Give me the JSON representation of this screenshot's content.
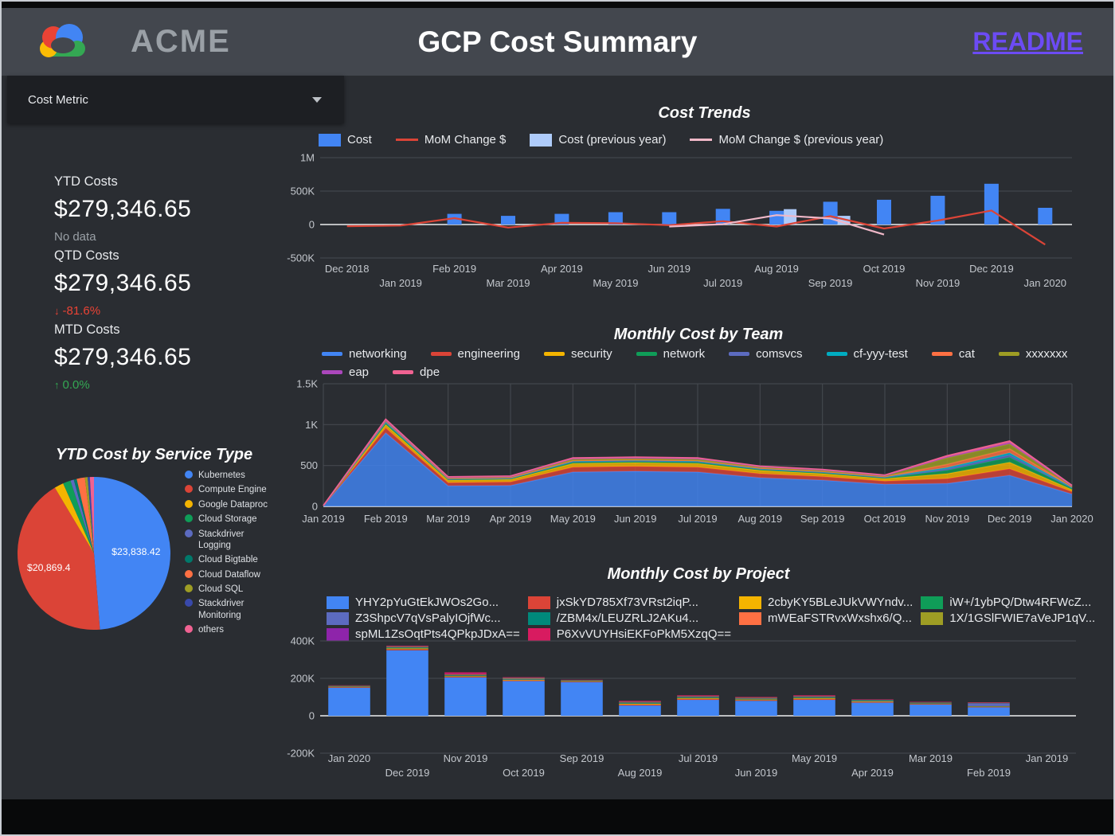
{
  "header": {
    "brand": "ACME",
    "title": "GCP Cost Summary",
    "readme": "README",
    "readme_color": "#6C4BF4"
  },
  "controls": {
    "cost_metric_label": "Cost Metric"
  },
  "kpis": [
    {
      "label": "YTD Costs",
      "value": "$279,346.65",
      "delta": "No data",
      "delta_icon": ""
    },
    {
      "label": "QTD Costs",
      "value": "$279,346.65",
      "delta": "-81.6%",
      "delta_icon": "↓"
    },
    {
      "label": "MTD Costs",
      "value": "$279,346.65",
      "delta": "0.0%",
      "delta_icon": "↑"
    }
  ],
  "chart_data": [
    {
      "id": "cost_trends",
      "type": "bar",
      "title": "Cost Trends",
      "categories": [
        "Dec 2018",
        "Jan 2019",
        "Feb 2019",
        "Mar 2019",
        "Apr 2019",
        "May 2019",
        "Jun 2019",
        "Jul 2019",
        "Aug 2019",
        "Sep 2019",
        "Oct 2019",
        "Nov 2019",
        "Dec 2019",
        "Jan 2020"
      ],
      "ylim": [
        -500000,
        1000000
      ],
      "y_ticks": [
        "1M",
        "500K",
        "0",
        "-500K"
      ],
      "y_tick_values": [
        1000000,
        500000,
        0,
        -500000
      ],
      "legend_position": "top",
      "grid": true,
      "series": [
        {
          "name": "Cost",
          "type": "bar",
          "color": "#4285F4",
          "values": [
            0,
            0,
            160000,
            130000,
            160000,
            185000,
            185000,
            235000,
            205000,
            340000,
            370000,
            430000,
            610000,
            250000
          ]
        },
        {
          "name": "MoM Change $",
          "type": "line",
          "color": "#DB4437",
          "values": [
            -25000,
            -15000,
            95000,
            -45000,
            25000,
            20000,
            -10000,
            50000,
            -30000,
            125000,
            -60000,
            60000,
            210000,
            -300000
          ]
        },
        {
          "name": "Cost (previous year)",
          "type": "bar",
          "color": "#AECBFA",
          "values": [
            null,
            null,
            null,
            null,
            null,
            null,
            null,
            null,
            230000,
            130000,
            null,
            null,
            null,
            null
          ]
        },
        {
          "name": "MoM Change $ (previous year)",
          "type": "line",
          "color": "#EFB8C8",
          "values": [
            null,
            null,
            null,
            null,
            null,
            null,
            -30000,
            5000,
            140000,
            90000,
            -150000,
            null,
            null,
            null
          ]
        }
      ]
    },
    {
      "id": "ytd_cost_by_service_type",
      "type": "pie",
      "title": "YTD Cost by Service Type",
      "slices": [
        {
          "label": "Kubernetes",
          "color": "#4285F4",
          "value": 23838.42,
          "data_label": "$23,838.42",
          "label_r": 0.55
        },
        {
          "label": "Compute Engine",
          "color": "#DB4437",
          "value": 20869.4,
          "data_label": "$20,869.4",
          "label_r": 0.62
        },
        {
          "label": "Google Dataproc",
          "color": "#F4B400",
          "value": 950
        },
        {
          "label": "Cloud Storage",
          "color": "#0F9D58",
          "value": 800
        },
        {
          "label": "Stackdriver Logging",
          "color": "#5C6BC0",
          "value": 350
        },
        {
          "label": "Cloud Bigtable",
          "color": "#00796B",
          "value": 300
        },
        {
          "label": "Cloud Dataflow",
          "color": "#FF7043",
          "value": 850
        },
        {
          "label": "Cloud SQL",
          "color": "#9E9D24",
          "value": 280
        },
        {
          "label": "Stackdriver Monitoring",
          "color": "#3949AB",
          "value": 230
        },
        {
          "label": "others",
          "color": "#F06292",
          "value": 420
        }
      ]
    },
    {
      "id": "monthly_cost_by_team",
      "type": "area",
      "title": "Monthly Cost by Team",
      "categories": [
        "Jan 2019",
        "Feb 2019",
        "Mar 2019",
        "Apr 2019",
        "May 2019",
        "Jun 2019",
        "Jul 2019",
        "Aug 2019",
        "Sep 2019",
        "Oct 2019",
        "Nov 2019",
        "Dec 2019",
        "Jan 2020"
      ],
      "ylim": [
        0,
        1500
      ],
      "y_ticks": [
        "1.5K",
        "1K",
        "500",
        "0"
      ],
      "y_tick_values": [
        1500,
        1000,
        500,
        0
      ],
      "grid": true,
      "series": [
        {
          "name": "networking",
          "color": "#4285F4",
          "values": [
            5,
            900,
            250,
            255,
            420,
            430,
            420,
            350,
            320,
            270,
            280,
            380,
            150
          ]
        },
        {
          "name": "engineering",
          "color": "#DB4437",
          "values": [
            2,
            60,
            40,
            45,
            60,
            60,
            60,
            50,
            45,
            40,
            60,
            80,
            30
          ]
        },
        {
          "name": "security",
          "color": "#F4B400",
          "values": [
            1,
            40,
            30,
            30,
            45,
            45,
            45,
            40,
            35,
            30,
            60,
            80,
            25
          ]
        },
        {
          "name": "network",
          "color": "#0F9D58",
          "values": [
            1,
            20,
            10,
            10,
            15,
            15,
            15,
            12,
            12,
            10,
            40,
            60,
            15
          ]
        },
        {
          "name": "comsvcs",
          "color": "#5C6BC0",
          "values": [
            0,
            10,
            5,
            5,
            8,
            8,
            8,
            6,
            6,
            5,
            20,
            30,
            8
          ]
        },
        {
          "name": "cf-yyy-test",
          "color": "#00ACC1",
          "values": [
            0,
            8,
            4,
            4,
            6,
            6,
            6,
            5,
            5,
            4,
            15,
            25,
            6
          ]
        },
        {
          "name": "cat",
          "color": "#FF7043",
          "values": [
            0,
            8,
            4,
            4,
            6,
            6,
            6,
            5,
            5,
            4,
            40,
            50,
            6
          ]
        },
        {
          "name": "xxxxxxx",
          "color": "#9E9D24",
          "values": [
            0,
            8,
            10,
            10,
            20,
            20,
            20,
            15,
            15,
            12,
            80,
            60,
            8
          ]
        },
        {
          "name": "eap",
          "color": "#AB47BC",
          "values": [
            0,
            4,
            3,
            3,
            5,
            5,
            5,
            4,
            4,
            3,
            10,
            15,
            4
          ]
        },
        {
          "name": "dpe",
          "color": "#F06292",
          "values": [
            1,
            10,
            6,
            6,
            8,
            8,
            8,
            6,
            6,
            5,
            15,
            20,
            6
          ]
        }
      ]
    },
    {
      "id": "monthly_cost_by_project",
      "type": "bar",
      "title": "Monthly Cost by Project",
      "categories": [
        "Jan 2020",
        "Dec 2019",
        "Nov 2019",
        "Oct 2019",
        "Sep 2019",
        "Aug 2019",
        "Jul 2019",
        "Jun 2019",
        "May 2019",
        "Apr 2019",
        "Mar 2019",
        "Feb 2019",
        "Jan 2019"
      ],
      "ylim": [
        -200000,
        400000
      ],
      "y_ticks": [
        "400K",
        "200K",
        "0",
        "-200K"
      ],
      "y_tick_values": [
        400000,
        200000,
        0,
        -200000
      ],
      "grid": true,
      "series": [
        {
          "name": "YHY2pYuGtEkJWOs2Go...",
          "color": "#4285F4",
          "values": [
            150000,
            350000,
            205000,
            185000,
            180000,
            55000,
            85000,
            80000,
            85000,
            70000,
            60000,
            45000,
            0
          ]
        },
        {
          "name": "jxSkYD785Xf73VRst2iqP...",
          "color": "#DB4437",
          "values": [
            3000,
            6000,
            4000,
            4000,
            3000,
            5000,
            5000,
            4000,
            5000,
            4000,
            3000,
            3000,
            0
          ]
        },
        {
          "name": "2cbyKY5BLeJUkVWYndv...",
          "color": "#F4B400",
          "values": [
            2000,
            4000,
            3000,
            3000,
            2000,
            4000,
            4000,
            3000,
            4000,
            3000,
            2000,
            2000,
            0
          ]
        },
        {
          "name": "iW+/1ybPQ/Dtw4RFWcZ...",
          "color": "#0F9D58",
          "values": [
            1500,
            3000,
            2000,
            2000,
            1500,
            3000,
            3000,
            2000,
            3000,
            2000,
            2000,
            1500,
            0
          ]
        },
        {
          "name": "Z3ShpcV7qVsPalyIOjfWc...",
          "color": "#5C6BC0",
          "values": [
            1000,
            2000,
            2000,
            2000,
            1000,
            2000,
            2000,
            2000,
            2000,
            2000,
            2000,
            15000,
            0
          ]
        },
        {
          "name": "/ZBM4x/LEUZRLJ2AKu4...",
          "color": "#00897B",
          "values": [
            1000,
            2000,
            2000,
            2000,
            1000,
            2000,
            2000,
            2000,
            2000,
            2000,
            1000,
            1000,
            0
          ]
        },
        {
          "name": "mWEaFSTRvxWxshx6/Q...",
          "color": "#FF7043",
          "values": [
            1000,
            2000,
            2000,
            2000,
            1000,
            2000,
            2000,
            2000,
            2000,
            1000,
            1000,
            1000,
            0
          ]
        },
        {
          "name": "1X/1GSlFWIE7aVeJP1qV...",
          "color": "#9E9D24",
          "values": [
            1000,
            2000,
            2000,
            2000,
            1000,
            2000,
            2000,
            2000,
            2000,
            1000,
            1000,
            1000,
            0
          ]
        },
        {
          "name": "spML1ZsOqtPts4QPkpJDxA==",
          "color": "#8E24AA",
          "values": [
            1000,
            2000,
            2000,
            2000,
            1000,
            2000,
            2000,
            2000,
            2000,
            1000,
            1000,
            1000,
            0
          ]
        },
        {
          "name": "P6XvVUYHsiEKFoPkM5XzqQ==",
          "color": "#D81B60",
          "values": [
            1000,
            2000,
            8000,
            2000,
            1000,
            3000,
            3000,
            2000,
            3000,
            2000,
            2000,
            2000,
            0
          ]
        }
      ]
    }
  ]
}
